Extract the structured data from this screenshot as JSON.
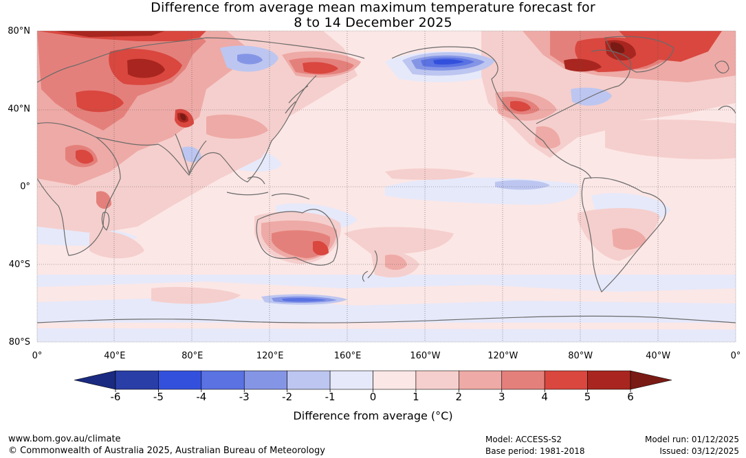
{
  "title": {
    "line1": "Difference from average mean maximum temperature forecast for",
    "line2": "8 to 14 December 2025"
  },
  "map": {
    "lat_labels": [
      "80°N",
      "40°N",
      "0°",
      "40°S",
      "80°S"
    ],
    "lat_values": [
      80,
      40,
      0,
      -40,
      -80
    ],
    "lon_labels": [
      "0°",
      "40°E",
      "80°E",
      "120°E",
      "160°E",
      "160°W",
      "120°W",
      "80°W",
      "40°W",
      "0°"
    ],
    "lon_values": [
      0,
      40,
      80,
      120,
      160,
      200,
      240,
      280,
      320,
      360
    ],
    "lon_range": [
      0,
      360
    ],
    "lat_range": [
      -80,
      80
    ],
    "background_anomaly_class": "0 to 1"
  },
  "colorbar": {
    "ticks": [
      "-6",
      "-5",
      "-4",
      "-3",
      "-2",
      "-1",
      "0",
      "1",
      "2",
      "3",
      "4",
      "5",
      "6"
    ],
    "colors": [
      "#2a3ea8",
      "#3350dc",
      "#5a72e2",
      "#8595e6",
      "#bdc6f0",
      "#e6e9fa",
      "#fbe7e6",
      "#f5cfcd",
      "#eeaaa6",
      "#e4807b",
      "#d9473f",
      "#a8261f"
    ],
    "under_color": "#1a2a80",
    "over_color": "#7a1a14",
    "xlabel": "Difference from average (°C)"
  },
  "footer": {
    "url": "www.bom.gov.au/climate",
    "copyright": "© Commonwealth of Australia 2025, Australian Bureau of Meteorology",
    "model": "Model: ACCESS-S2",
    "base_period": "Base period: 1981-2018",
    "model_run": "Model run: 01/12/2025",
    "issued": "Issued: 03/12/2025"
  }
}
